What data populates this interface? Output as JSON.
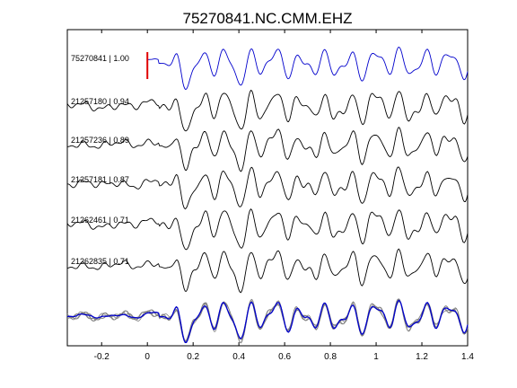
{
  "chart_data": {
    "type": "line",
    "title": "75270841.NC.CMM.EHZ",
    "xlabel": "",
    "ylabel": "",
    "xlim": [
      -0.35,
      1.4
    ],
    "xticks": [
      "-0.2",
      "0",
      "0.2",
      "0.4",
      "0.6",
      "0.8",
      "1",
      "1.2",
      "1.4"
    ],
    "xtick_values": [
      -0.2,
      0,
      0.2,
      0.4,
      0.6,
      0.8,
      1,
      1.2,
      1.4
    ],
    "grid": false,
    "pick_marker": {
      "x": 0,
      "color": "#e00000"
    },
    "series": [
      {
        "name": "75270841 | 1.00",
        "color": "#0000cc"
      },
      {
        "name": "21257180 | 0.94",
        "color": "#000000"
      },
      {
        "name": "21257236 | 0.89",
        "color": "#000000"
      },
      {
        "name": "21257181 | 0.87",
        "color": "#000000"
      },
      {
        "name": "21262461 | 0.71",
        "color": "#000000"
      },
      {
        "name": "21262835 | 0.71",
        "color": "#000000"
      }
    ],
    "overlay": {
      "colors": [
        "#0000cc",
        "#808080"
      ]
    }
  }
}
